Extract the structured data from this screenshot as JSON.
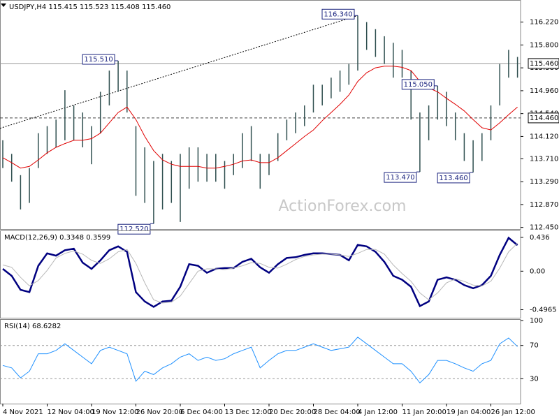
{
  "watermark": "ActionForex.com",
  "chart_data": [
    {
      "type": "range",
      "title": "USDJPY,H4  115.415 115.523 115.408 115.460",
      "color": "#2f4f4f",
      "high": [
        114.05,
        113.8,
        113.41,
        113.54,
        114.18,
        114.31,
        114.43,
        114.97,
        114.69,
        114.56,
        114.31,
        114.94,
        115.33,
        115.51,
        115.33,
        114.31,
        113.92,
        113.67,
        113.8,
        113.67,
        113.8,
        113.92,
        113.92,
        113.8,
        113.8,
        113.67,
        113.8,
        114.18,
        114.31,
        113.8,
        113.8,
        114.18,
        114.43,
        114.56,
        114.69,
        115.07,
        115.07,
        115.2,
        115.33,
        115.45,
        116.34,
        116.22,
        116.09,
        115.96,
        115.84,
        115.71,
        115.33,
        114.56,
        114.69,
        115.05,
        114.94,
        114.56,
        114.18,
        114.05,
        114.18,
        114.69,
        115.45,
        115.71,
        115.58
      ],
      "low": [
        113.54,
        113.29,
        112.78,
        112.9,
        113.54,
        113.8,
        113.92,
        114.05,
        114.05,
        113.92,
        113.61,
        114.18,
        114.69,
        114.94,
        114.56,
        113.03,
        112.9,
        112.52,
        112.78,
        112.9,
        112.55,
        113.16,
        113.29,
        113.29,
        113.29,
        113.16,
        113.41,
        113.54,
        113.67,
        113.16,
        113.41,
        113.67,
        114.05,
        114.18,
        114.31,
        114.56,
        114.69,
        114.82,
        114.94,
        115.07,
        115.33,
        115.71,
        115.58,
        115.45,
        115.2,
        115.2,
        114.43,
        113.47,
        114.05,
        114.43,
        114.31,
        114.05,
        113.67,
        113.46,
        113.67,
        114.05,
        114.69,
        115.2,
        115.2
      ],
      "ma": {
        "color": "#e00000",
        "values": [
          113.73,
          113.64,
          113.54,
          113.57,
          113.69,
          113.82,
          113.92,
          113.99,
          114.05,
          114.05,
          114.08,
          114.18,
          114.37,
          114.56,
          114.66,
          114.43,
          114.12,
          113.86,
          113.69,
          113.61,
          113.57,
          113.57,
          113.57,
          113.54,
          113.54,
          113.57,
          113.61,
          113.67,
          113.69,
          113.64,
          113.64,
          113.73,
          113.86,
          113.99,
          114.12,
          114.24,
          114.41,
          114.56,
          114.71,
          114.88,
          115.13,
          115.29,
          115.38,
          115.41,
          115.41,
          115.39,
          115.33,
          115.13,
          115.01,
          114.94,
          114.82,
          114.71,
          114.59,
          114.43,
          114.28,
          114.24,
          114.37,
          114.52,
          114.66
        ]
      },
      "ylim": [
        112.42,
        116.6
      ],
      "yticks": [
        {
          "value": 112.45,
          "label": "112.450"
        },
        {
          "value": 112.87,
          "label": "112.870"
        },
        {
          "value": 113.29,
          "label": "113.290"
        },
        {
          "value": 113.71,
          "label": "113.710"
        },
        {
          "value": 114.12,
          "label": "114.120"
        },
        {
          "value": 114.54,
          "label": "114.540"
        },
        {
          "value": 114.96,
          "label": "114.960"
        },
        {
          "value": 115.38,
          "label": "115.380"
        },
        {
          "value": 115.8,
          "label": "115.800"
        },
        {
          "value": 116.22,
          "label": "116.220"
        }
      ],
      "grid": false,
      "trendline": {
        "start": 114.27,
        "end": 116.34
      },
      "levels": [
        {
          "value": 115.46,
          "label": "115.460",
          "style": "solid"
        },
        {
          "value": 114.46,
          "label": "114.460",
          "style": "dashed"
        }
      ],
      "annotations": [
        {
          "value": 116.34,
          "label": "116.340"
        },
        {
          "value": 115.51,
          "label": "115.510"
        },
        {
          "value": 112.52,
          "label": "112.520"
        },
        {
          "value": 113.47,
          "label": "113.470"
        },
        {
          "value": 115.05,
          "label": "115.050"
        },
        {
          "value": 113.46,
          "label": "113.460"
        }
      ]
    },
    {
      "type": "line",
      "title": "MACD(12,26,9) 0.3348 0.3599",
      "series": [
        {
          "color": "#000080",
          "width": 2.5,
          "values": [
            0.03,
            -0.06,
            -0.24,
            -0.27,
            0.07,
            0.23,
            0.2,
            0.27,
            0.29,
            0.11,
            0.03,
            0.14,
            0.27,
            0.32,
            0.25,
            -0.27,
            -0.39,
            -0.46,
            -0.39,
            -0.38,
            -0.2,
            0.09,
            0.07,
            -0.02,
            0.03,
            0.04,
            0.04,
            0.12,
            0.16,
            0.05,
            -0.02,
            0.09,
            0.17,
            0.18,
            0.21,
            0.23,
            0.23,
            0.22,
            0.21,
            0.14,
            0.34,
            0.32,
            0.25,
            0.12,
            -0.06,
            -0.11,
            -0.2,
            -0.45,
            -0.39,
            -0.11,
            -0.08,
            -0.11,
            -0.18,
            -0.22,
            -0.18,
            -0.06,
            0.21,
            0.43,
            0.3348
          ]
        },
        {
          "color": "#b8b8b8",
          "width": 1,
          "values": [
            0.08,
            0.05,
            -0.08,
            -0.19,
            -0.12,
            0.01,
            0.17,
            0.23,
            0.26,
            0.22,
            0.14,
            0.1,
            0.16,
            0.25,
            0.28,
            0.1,
            -0.15,
            -0.37,
            -0.41,
            -0.4,
            -0.32,
            -0.16,
            0.0,
            0.03,
            0.03,
            0.02,
            0.04,
            0.07,
            0.11,
            0.1,
            0.05,
            0.04,
            0.09,
            0.15,
            0.19,
            0.21,
            0.22,
            0.22,
            0.21,
            0.19,
            0.23,
            0.28,
            0.28,
            0.22,
            0.08,
            -0.03,
            -0.13,
            -0.28,
            -0.37,
            -0.28,
            -0.15,
            -0.1,
            -0.13,
            -0.18,
            -0.19,
            -0.13,
            0.04,
            0.25,
            0.3599
          ]
        }
      ],
      "ylim": [
        -0.6,
        0.507
      ],
      "yticks": [
        -0.4965,
        {
          "value": 0,
          "label": "0.00"
        },
        0.436
      ],
      "grid": false
    },
    {
      "type": "line",
      "title": "RSI(14) 68.6282",
      "series": [
        {
          "color": "#1e90ff",
          "width": 1,
          "values": [
            46,
            43,
            31,
            39,
            60,
            60,
            64,
            72,
            64,
            56,
            48,
            64,
            68,
            64,
            60,
            27,
            39,
            35,
            43,
            48,
            56,
            60,
            52,
            56,
            52,
            54,
            60,
            64,
            68,
            43,
            52,
            60,
            64,
            64,
            68,
            72,
            68,
            64,
            66,
            68,
            80,
            72,
            64,
            56,
            48,
            48,
            39,
            25,
            35,
            52,
            52,
            48,
            43,
            39,
            48,
            52,
            72,
            79,
            68.6282
          ]
        }
      ],
      "ylim": [
        0,
        100
      ],
      "yticks": [
        30,
        70,
        100
      ],
      "grid": true,
      "categories": [
        "4 Nov 2021",
        null,
        null,
        null,
        null,
        "12 Nov 04:00",
        null,
        null,
        null,
        null,
        "19 Nov 12:00",
        null,
        null,
        null,
        null,
        "26 Nov 20:00",
        null,
        null,
        null,
        null,
        "6 Dec 04:00",
        null,
        null,
        null,
        null,
        "13 Dec 12:00",
        null,
        null,
        null,
        null,
        "20 Dec 20:00",
        null,
        null,
        null,
        null,
        "28 Dec 04:00",
        null,
        null,
        null,
        null,
        "4 Jan 12:00",
        null,
        null,
        null,
        null,
        "11 Jan 20:00",
        null,
        null,
        null,
        null,
        "19 Jan 04:00",
        null,
        null,
        null,
        null,
        "26 Jan 12:00",
        null,
        null,
        null
      ]
    }
  ]
}
